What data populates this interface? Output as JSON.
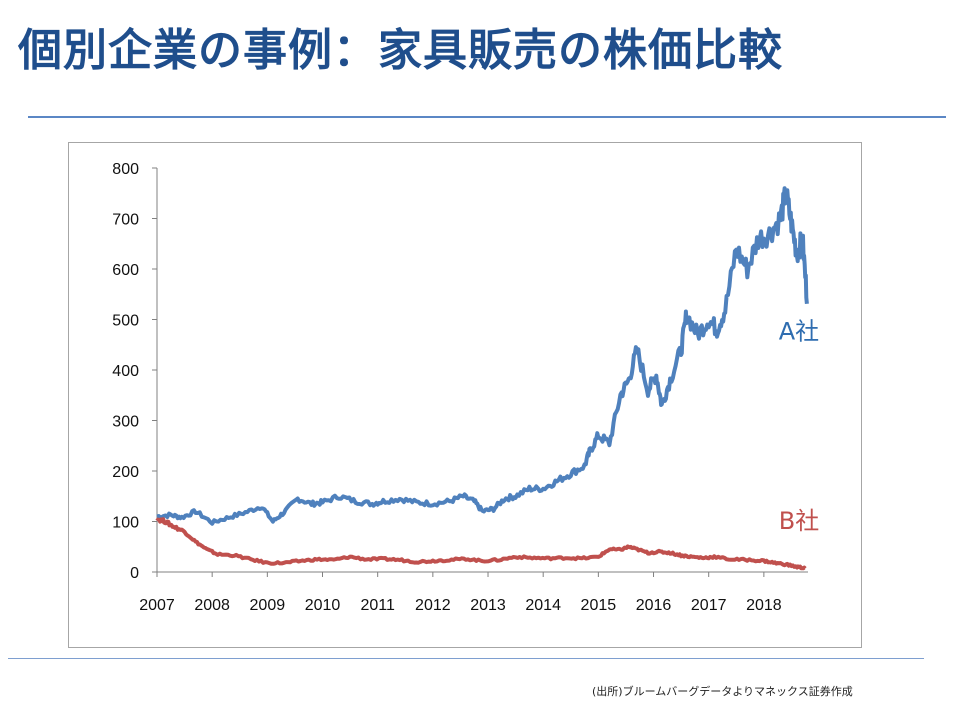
{
  "slide": {
    "title": "個別企業の事例：家具販売の株価比較",
    "source": "(出所)ブルームバーグデータよりマネックス証券作成"
  },
  "colors": {
    "title": "#1f4e8c",
    "series_a": "#4f81bd",
    "series_b": "#c0504d"
  },
  "chart_data": {
    "type": "line",
    "title": "",
    "xlabel": "",
    "ylabel": "",
    "xlim": [
      2007,
      2018.8
    ],
    "ylim": [
      0,
      800
    ],
    "y_ticks": [
      0,
      100,
      200,
      300,
      400,
      500,
      600,
      700,
      800
    ],
    "x_ticks": [
      2007,
      2008,
      2009,
      2010,
      2011,
      2012,
      2013,
      2014,
      2015,
      2016,
      2017,
      2018
    ],
    "grid": false,
    "legend": "none",
    "series": [
      {
        "name": "A社",
        "color": "#4f81bd",
        "x": [
          2007.0,
          2007.25,
          2007.45,
          2007.7,
          2008.0,
          2008.3,
          2008.6,
          2008.9,
          2009.1,
          2009.3,
          2009.55,
          2009.8,
          2010.0,
          2010.3,
          2010.6,
          2010.9,
          2011.1,
          2011.4,
          2011.7,
          2012.0,
          2012.3,
          2012.55,
          2012.75,
          2012.9,
          2013.1,
          2013.3,
          2013.5,
          2013.75,
          2014.0,
          2014.25,
          2014.5,
          2014.75,
          2014.85,
          2015.0,
          2015.2,
          2015.4,
          2015.55,
          2015.7,
          2015.9,
          2016.05,
          2016.15,
          2016.3,
          2016.5,
          2016.6,
          2016.8,
          2017.0,
          2017.15,
          2017.3,
          2017.5,
          2017.7,
          2017.9,
          2018.1,
          2018.3,
          2018.4,
          2018.5,
          2018.6,
          2018.7,
          2018.78
        ],
        "values": [
          110,
          113,
          108,
          120,
          98,
          108,
          118,
          130,
          100,
          118,
          145,
          135,
          138,
          150,
          140,
          135,
          140,
          145,
          138,
          135,
          140,
          150,
          140,
          120,
          125,
          145,
          150,
          165,
          165,
          180,
          195,
          210,
          240,
          270,
          255,
          350,
          380,
          440,
          360,
          390,
          330,
          380,
          440,
          510,
          470,
          500,
          480,
          520,
          640,
          600,
          660,
          670,
          700,
          750,
          690,
          630,
          660,
          545
        ]
      },
      {
        "name": "B社",
        "color": "#c0504d",
        "x": [
          2007.0,
          2007.15,
          2007.3,
          2007.5,
          2007.7,
          2007.9,
          2008.1,
          2008.4,
          2008.7,
          2009.0,
          2009.3,
          2009.6,
          2009.9,
          2010.2,
          2010.5,
          2010.8,
          2011.1,
          2011.4,
          2011.7,
          2012.0,
          2012.3,
          2012.6,
          2012.9,
          2013.2,
          2013.5,
          2013.8,
          2014.1,
          2014.4,
          2014.7,
          2015.0,
          2015.2,
          2015.4,
          2015.55,
          2015.7,
          2015.9,
          2016.1,
          2016.3,
          2016.5,
          2016.7,
          2016.9,
          2017.1,
          2017.4,
          2017.7,
          2018.0,
          2018.2,
          2018.4,
          2018.6,
          2018.75
        ],
        "values": [
          105,
          100,
          90,
          80,
          60,
          45,
          35,
          33,
          25,
          18,
          18,
          22,
          25,
          24,
          30,
          25,
          26,
          24,
          20,
          22,
          24,
          26,
          22,
          24,
          30,
          28,
          27,
          28,
          27,
          30,
          45,
          44,
          50,
          45,
          38,
          40,
          38,
          33,
          30,
          28,
          30,
          25,
          24,
          22,
          18,
          15,
          10,
          8
        ]
      }
    ],
    "annotations": [
      {
        "text": "A社",
        "x": 2018.85,
        "y": 480,
        "color": "#2f6db0"
      },
      {
        "text": "B社",
        "x": 2018.85,
        "y": 105,
        "color": "#c0504d"
      }
    ]
  }
}
